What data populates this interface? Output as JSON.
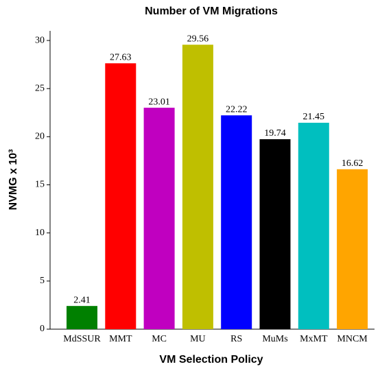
{
  "chart_data": {
    "type": "bar",
    "title": "Number of VM Migrations",
    "x_label": "VM Selection Policy",
    "y_label": "NVMG x 10³",
    "categories": [
      "MdSSUR",
      "MMT",
      "MC",
      "MU",
      "RS",
      "MuMs",
      "MxMT",
      "MNCM"
    ],
    "values": [
      2.41,
      27.63,
      23.01,
      29.56,
      22.22,
      19.74,
      21.45,
      16.62
    ],
    "colors": [
      "#008000",
      "#ff0000",
      "#c000c0",
      "#bfbf00",
      "#0000ff",
      "#000000",
      "#00bfbf",
      "#ffa500"
    ],
    "ylim": [
      0,
      31
    ],
    "yticks": [
      0,
      5,
      10,
      15,
      20,
      25,
      30
    ],
    "grid": false
  }
}
